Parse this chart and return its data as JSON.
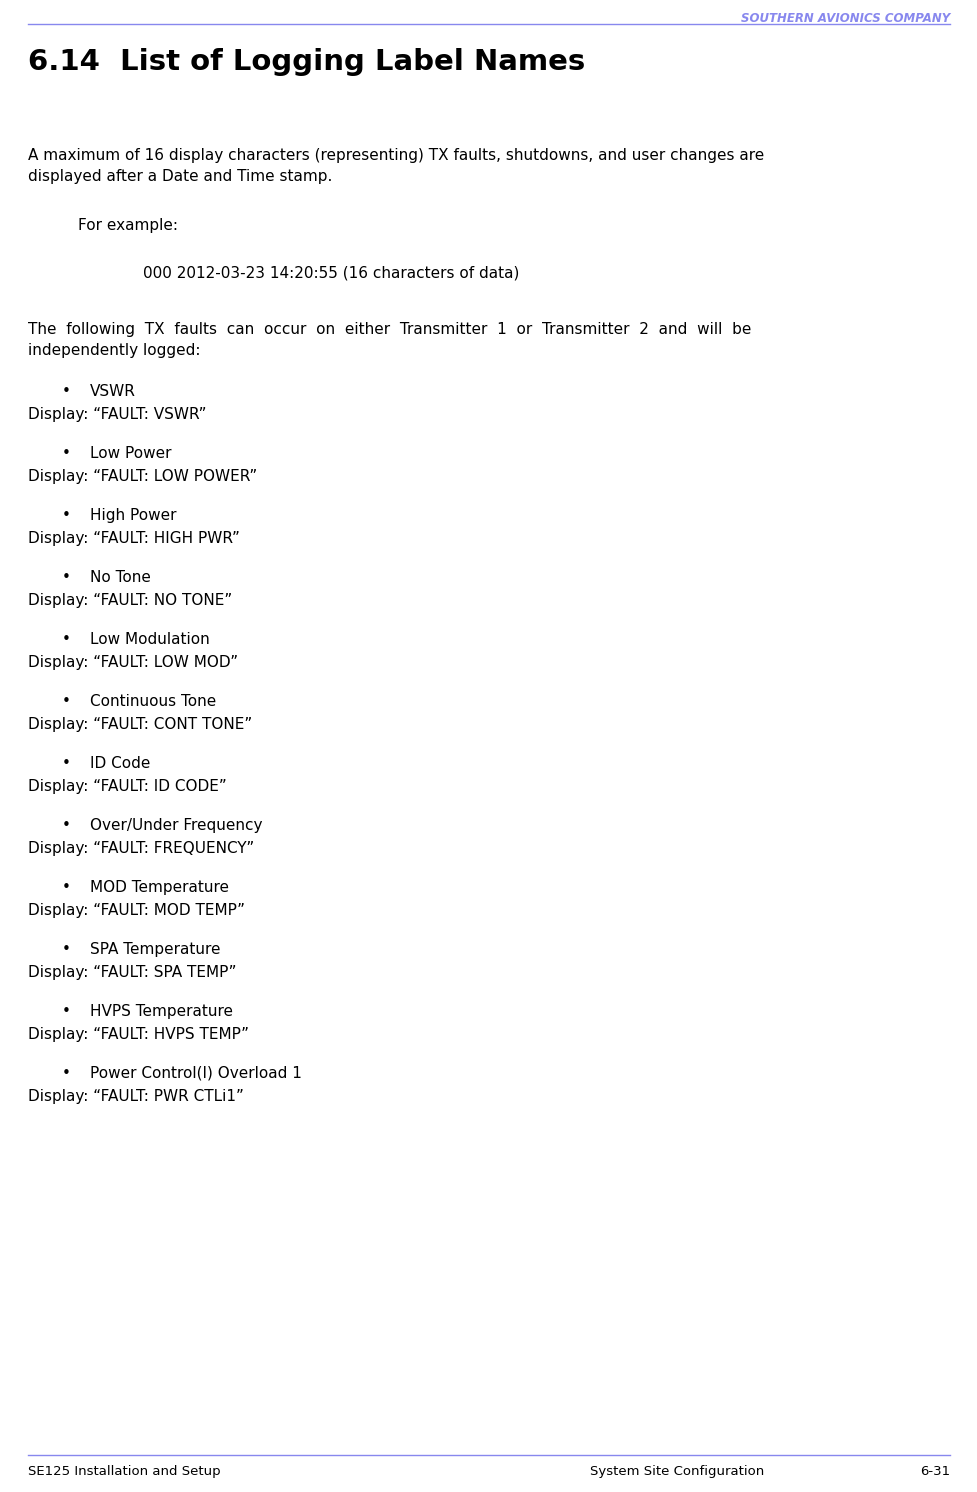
{
  "header_company": "SOUTHERN AVIONICS COMPANY",
  "header_line_color": "#8888ee",
  "header_company_color": "#8888ee",
  "title": "6.14  List of Logging Label Names",
  "body_text_1a": "A maximum of 16 display characters (representing) TX faults, shutdowns, and user changes are",
  "body_text_1b": "displayed after a Date and Time stamp.",
  "for_example_label": "For example:",
  "example_code": "000 2012-03-23 14:20:55 (16 characters of data)",
  "intro_text_a": "The  following  TX  faults  can  occur  on  either  Transmitter  1  or  Transmitter  2  and  will  be",
  "intro_text_b": "independently logged:",
  "items": [
    {
      "bullet": "VSWR",
      "display": "Display: “FAULT: VSWR”"
    },
    {
      "bullet": "Low Power",
      "display": "Display: “FAULT: LOW POWER”"
    },
    {
      "bullet": "High Power",
      "display": "Display: “FAULT: HIGH PWR”"
    },
    {
      "bullet": "No Tone",
      "display": "Display: “FAULT: NO TONE”"
    },
    {
      "bullet": "Low Modulation",
      "display": "Display: “FAULT: LOW MOD”"
    },
    {
      "bullet": "Continuous Tone",
      "display": "Display: “FAULT: CONT TONE”"
    },
    {
      "bullet": "ID Code",
      "display": "Display: “FAULT: ID CODE”"
    },
    {
      "bullet": "Over/Under Frequency",
      "display": "Display: “FAULT: FREQUENCY”"
    },
    {
      "bullet": "MOD Temperature",
      "display": "Display: “FAULT: MOD TEMP”"
    },
    {
      "bullet": "SPA Temperature",
      "display": "Display: “FAULT: SPA TEMP”"
    },
    {
      "bullet": "HVPS Temperature",
      "display": "Display: “FAULT: HVPS TEMP”"
    },
    {
      "bullet": "Power Control(I) Overload 1",
      "display": "Display: “FAULT: PWR CTLi1”"
    }
  ],
  "footer_left": "SE125 Installation and Setup",
  "footer_center": "System Site Configuration",
  "footer_right": "6-31",
  "footer_line_color": "#8888ee",
  "bg_color": "#ffffff",
  "text_color": "#000000",
  "bullet_char": "•"
}
